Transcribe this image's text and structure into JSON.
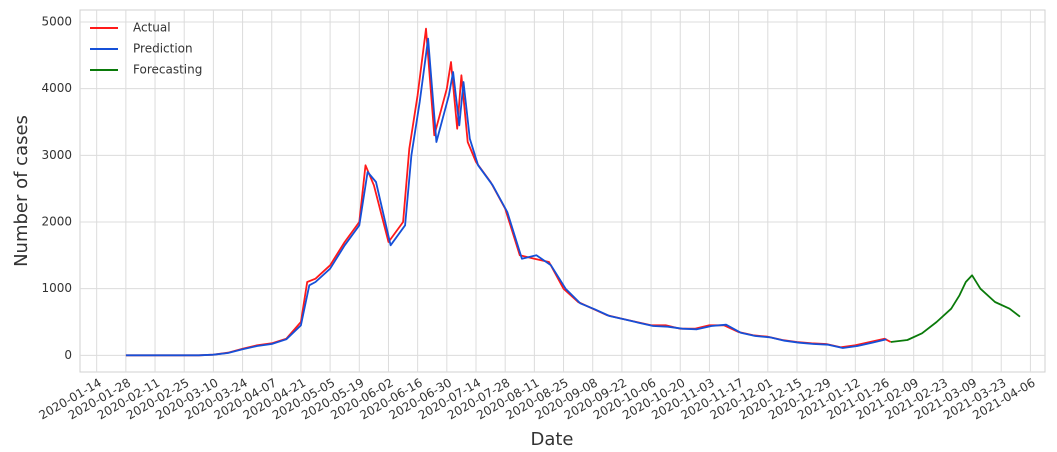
{
  "chart_data": {
    "type": "line",
    "x_label": "Date",
    "y_label": "Number of cases",
    "xlim": [
      "2020-01-06",
      "2021-04-13"
    ],
    "ylim": [
      -250,
      5180
    ],
    "xticks": [
      "2020-01-14",
      "2020-01-28",
      "2020-02-11",
      "2020-02-25",
      "2020-03-10",
      "2020-03-24",
      "2020-04-07",
      "2020-04-21",
      "2020-05-05",
      "2020-05-19",
      "2020-06-02",
      "2020-06-16",
      "2020-06-30",
      "2020-07-14",
      "2020-07-28",
      "2020-08-11",
      "2020-08-25",
      "2020-09-08",
      "2020-09-22",
      "2020-10-06",
      "2020-10-20",
      "2020-11-03",
      "2020-11-17",
      "2020-12-01",
      "2020-12-15",
      "2020-12-29",
      "2021-01-12",
      "2021-01-26",
      "2021-02-09",
      "2021-02-23",
      "2021-03-09",
      "2021-03-23",
      "2021-04-06"
    ],
    "yticks": [
      0,
      1000,
      2000,
      3000,
      4000,
      5000
    ],
    "grid": true,
    "legend": "upper left",
    "series": [
      {
        "name": "Actual",
        "color": "#ff1a1a",
        "x": [
          "2020-01-28",
          "2020-02-04",
          "2020-02-11",
          "2020-02-18",
          "2020-02-25",
          "2020-03-03",
          "2020-03-10",
          "2020-03-17",
          "2020-03-24",
          "2020-03-31",
          "2020-04-07",
          "2020-04-14",
          "2020-04-21",
          "2020-04-24",
          "2020-04-28",
          "2020-05-05",
          "2020-05-12",
          "2020-05-19",
          "2020-05-22",
          "2020-05-26",
          "2020-06-02",
          "2020-06-09",
          "2020-06-12",
          "2020-06-16",
          "2020-06-20",
          "2020-06-24",
          "2020-06-30",
          "2020-07-02",
          "2020-07-05",
          "2020-07-07",
          "2020-07-10",
          "2020-07-14",
          "2020-07-21",
          "2020-07-28",
          "2020-08-04",
          "2020-08-11",
          "2020-08-18",
          "2020-08-25",
          "2020-09-01",
          "2020-09-08",
          "2020-09-15",
          "2020-09-22",
          "2020-09-29",
          "2020-10-06",
          "2020-10-13",
          "2020-10-20",
          "2020-10-27",
          "2020-11-03",
          "2020-11-10",
          "2020-11-17",
          "2020-11-24",
          "2020-12-01",
          "2020-12-08",
          "2020-12-15",
          "2020-12-22",
          "2020-12-29",
          "2021-01-05",
          "2021-01-12",
          "2021-01-19",
          "2021-01-26",
          "2021-01-29"
        ],
        "values": [
          0,
          0,
          0,
          0,
          0,
          0,
          10,
          40,
          100,
          150,
          180,
          250,
          500,
          1100,
          1150,
          1350,
          1700,
          2000,
          2850,
          2550,
          1700,
          2000,
          3100,
          3900,
          4900,
          3300,
          4000,
          4400,
          3400,
          4200,
          3200,
          2900,
          2600,
          2200,
          1500,
          1450,
          1400,
          1000,
          800,
          700,
          600,
          550,
          500,
          450,
          450,
          400,
          400,
          450,
          450,
          350,
          300,
          280,
          230,
          200,
          180,
          170,
          120,
          150,
          200,
          250,
          200
        ]
      },
      {
        "name": "Prediction",
        "color": "#1550d8",
        "x": [
          "2020-01-28",
          "2020-02-04",
          "2020-02-11",
          "2020-02-18",
          "2020-02-25",
          "2020-03-03",
          "2020-03-10",
          "2020-03-17",
          "2020-03-24",
          "2020-03-31",
          "2020-04-07",
          "2020-04-14",
          "2020-04-21",
          "2020-04-25",
          "2020-04-28",
          "2020-05-05",
          "2020-05-12",
          "2020-05-19",
          "2020-05-23",
          "2020-05-27",
          "2020-06-03",
          "2020-06-10",
          "2020-06-13",
          "2020-06-17",
          "2020-06-21",
          "2020-06-25",
          "2020-07-01",
          "2020-07-03",
          "2020-07-06",
          "2020-07-08",
          "2020-07-11",
          "2020-07-15",
          "2020-07-22",
          "2020-07-29",
          "2020-08-05",
          "2020-08-12",
          "2020-08-19",
          "2020-08-26",
          "2020-09-02",
          "2020-09-09",
          "2020-09-16",
          "2020-09-23",
          "2020-09-30",
          "2020-10-07",
          "2020-10-14",
          "2020-10-21",
          "2020-10-28",
          "2020-11-04",
          "2020-11-11",
          "2020-11-18",
          "2020-11-25",
          "2020-12-02",
          "2020-12-09",
          "2020-12-16",
          "2020-12-23",
          "2020-12-30",
          "2021-01-06",
          "2021-01-13",
          "2021-01-20",
          "2021-01-27"
        ],
        "values": [
          0,
          0,
          0,
          0,
          0,
          0,
          10,
          35,
          90,
          140,
          170,
          240,
          450,
          1050,
          1100,
          1300,
          1650,
          1950,
          2750,
          2600,
          1650,
          1950,
          3000,
          3800,
          4750,
          3200,
          3900,
          4250,
          3450,
          4100,
          3250,
          2850,
          2550,
          2150,
          1450,
          1500,
          1350,
          1000,
          780,
          690,
          590,
          540,
          490,
          440,
          430,
          400,
          390,
          440,
          460,
          340,
          290,
          270,
          220,
          190,
          170,
          160,
          110,
          140,
          190,
          240
        ]
      },
      {
        "name": "Forecasting",
        "color": "#0a7a0a",
        "x": [
          "2021-01-29",
          "2021-02-06",
          "2021-02-13",
          "2021-02-20",
          "2021-02-27",
          "2021-03-03",
          "2021-03-06",
          "2021-03-09",
          "2021-03-13",
          "2021-03-20",
          "2021-03-27",
          "2021-04-01"
        ],
        "values": [
          200,
          230,
          330,
          500,
          700,
          900,
          1100,
          1200,
          1000,
          800,
          700,
          580
        ]
      }
    ]
  }
}
